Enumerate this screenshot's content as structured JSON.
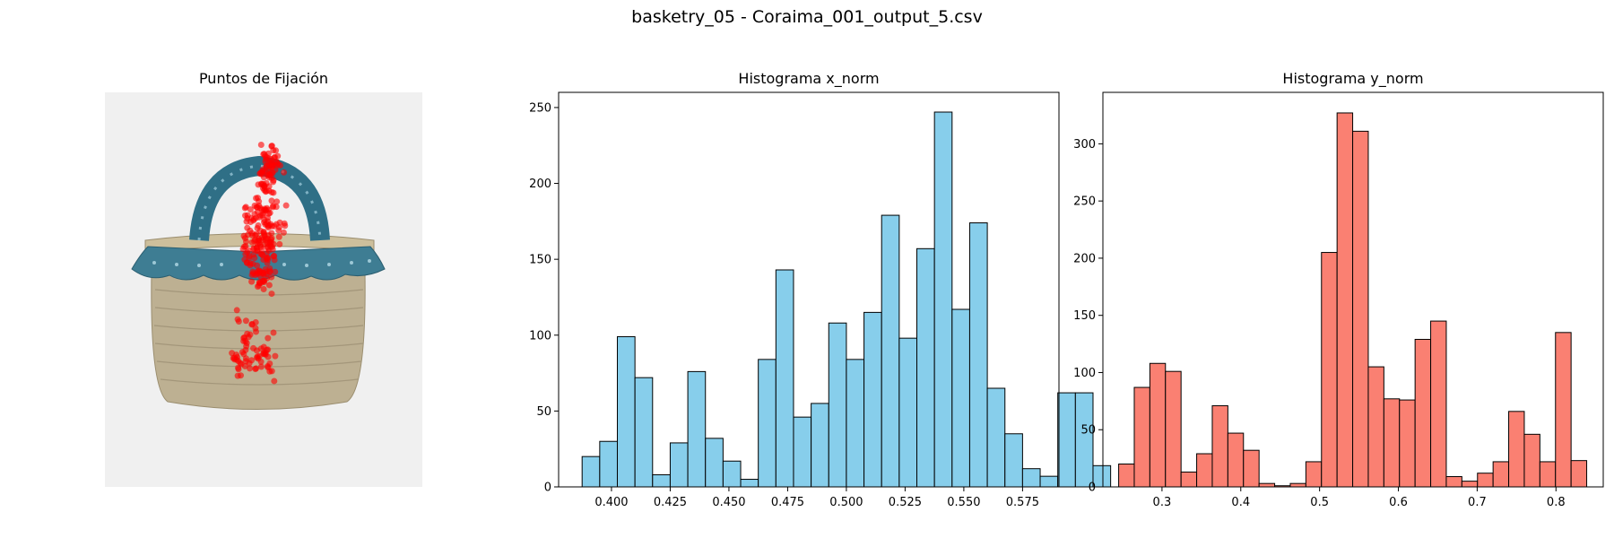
{
  "figure": {
    "title": "basketry_05 - Coraima_001_output_5.csv"
  },
  "image_panel": {
    "title": "Puntos de Fijación"
  },
  "colors": {
    "x_bars": "#87ceeb",
    "y_bars": "#fa8072",
    "bar_edge": "#000000",
    "fixation": "#ff0000",
    "background": "#f0f0f0"
  },
  "chart_data": [
    {
      "type": "bar",
      "title": "Histograma x_norm",
      "xlabel": "",
      "ylabel": "",
      "bin_start": 0.3875,
      "bin_width": 0.0075,
      "values": [
        20,
        30,
        99,
        72,
        8,
        29,
        76,
        32,
        17,
        5,
        84,
        143,
        46,
        55,
        108,
        84,
        115,
        179,
        98,
        157,
        247,
        117,
        174,
        65,
        35,
        12,
        7,
        62,
        62,
        14
      ],
      "xlim": [
        0.3775,
        0.5905
      ],
      "ylim": [
        0,
        260
      ],
      "xticks": [
        0.4,
        0.425,
        0.45,
        0.475,
        0.5,
        0.525,
        0.55,
        0.575
      ],
      "xtick_labels": [
        "0.400",
        "0.425",
        "0.450",
        "0.475",
        "0.500",
        "0.525",
        "0.550",
        "0.575"
      ],
      "yticks": [
        0,
        50,
        100,
        150,
        200,
        250
      ],
      "ytick_labels": [
        "0",
        "50",
        "100",
        "150",
        "200",
        "250"
      ],
      "grid": false
    },
    {
      "type": "bar",
      "title": "Histograma y_norm",
      "xlabel": "",
      "ylabel": "",
      "bin_start": 0.245,
      "bin_width": 0.0198,
      "values": [
        20,
        87,
        108,
        101,
        13,
        29,
        71,
        47,
        32,
        3,
        1,
        3,
        22,
        205,
        327,
        311,
        105,
        77,
        76,
        129,
        145,
        9,
        5,
        12,
        22,
        66,
        46,
        22,
        135,
        23
      ],
      "xlim": [
        0.225,
        0.86
      ],
      "ylim": [
        0,
        345
      ],
      "xticks": [
        0.3,
        0.4,
        0.5,
        0.6,
        0.7,
        0.8
      ],
      "xtick_labels": [
        "0.3",
        "0.4",
        "0.5",
        "0.6",
        "0.7",
        "0.8"
      ],
      "yticks": [
        0,
        50,
        100,
        150,
        200,
        250,
        300
      ],
      "ytick_labels": [
        "0",
        "50",
        "100",
        "150",
        "200",
        "250",
        "300"
      ],
      "grid": false
    }
  ]
}
